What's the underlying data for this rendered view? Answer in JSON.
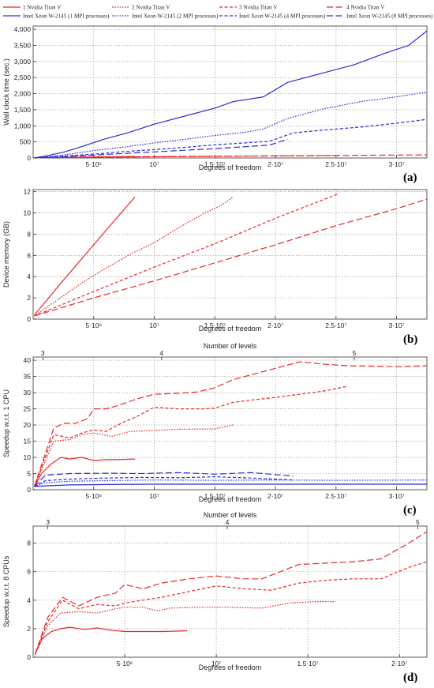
{
  "legend": [
    {
      "label": "1 Nvidia Titan V",
      "color": "#e8282b",
      "dash": "solid"
    },
    {
      "label": "2 Nvidia Titan V",
      "color": "#e8282b",
      "dash": "dotted"
    },
    {
      "label": "3 Nvidia Titan V",
      "color": "#e8282b",
      "dash": "dashed"
    },
    {
      "label": "4 Nvidia Titan V",
      "color": "#e8282b",
      "dash": "longdash"
    },
    {
      "label": "Intel Xeon W-2145 (1 MPI processes)",
      "color": "#2c2cd6",
      "dash": "solid"
    },
    {
      "label": "Intel Xeon W-2145 (2 MPI processes)",
      "color": "#2c2cd6",
      "dash": "dotted"
    },
    {
      "label": "Intel Xeon W-2145 (4 MPI processes)",
      "color": "#2c2cd6",
      "dash": "dashed"
    },
    {
      "label": "Intel Xeon W-2145 (8 MPI processes)",
      "color": "#2c2cd6",
      "dash": "longdash"
    }
  ],
  "chart_data": [
    {
      "panel": "(a)",
      "type": "line",
      "xlabel": "Degrees of freedom",
      "ylabel": "Wall clock time (sec.)",
      "xlim": [
        0,
        32500000
      ],
      "ylim": [
        0,
        4100
      ],
      "xticks": [
        {
          "v": 5000000,
          "label": "5·10⁶"
        },
        {
          "v": 10000000,
          "label": "10⁷"
        },
        {
          "v": 15000000,
          "label": "1.5·10⁷"
        },
        {
          "v": 20000000,
          "label": "2·10⁷"
        },
        {
          "v": 25000000,
          "label": "2.5·10⁷"
        },
        {
          "v": 30000000,
          "label": "3·10⁷"
        }
      ],
      "yticks": [
        {
          "v": 0,
          "label": "0"
        },
        {
          "v": 500,
          "label": "500"
        },
        {
          "v": 1000,
          "label": "1,000"
        },
        {
          "v": 1500,
          "label": "1,500"
        },
        {
          "v": 2000,
          "label": "2,000"
        },
        {
          "v": 2500,
          "label": "2,500"
        },
        {
          "v": 3000,
          "label": "3,000"
        },
        {
          "v": 3500,
          "label": "3,500"
        },
        {
          "v": 4000,
          "label": "4,000"
        }
      ],
      "grid": true,
      "series": [
        {
          "legend": 0,
          "x": [
            100000,
            1000000,
            2500000,
            4000000,
            5800000,
            7000000,
            8400000
          ],
          "y": [
            2,
            12,
            22,
            30,
            38,
            42,
            48
          ]
        },
        {
          "legend": 1,
          "x": [
            100000,
            2000000,
            4000000,
            6000000,
            9000000,
            12000000,
            15000000,
            16500000
          ],
          "y": [
            2,
            12,
            22,
            30,
            42,
            52,
            58,
            60
          ]
        },
        {
          "legend": 2,
          "x": [
            100000,
            3000000,
            6000000,
            10000000,
            14000000,
            18000000,
            22000000,
            25200000
          ],
          "y": [
            2,
            14,
            28,
            40,
            52,
            62,
            70,
            78
          ]
        },
        {
          "legend": 3,
          "x": [
            100000,
            4000000,
            8000000,
            13000000,
            18000000,
            23000000,
            28000000,
            32500000
          ],
          "y": [
            2,
            16,
            32,
            46,
            58,
            70,
            85,
            95
          ]
        },
        {
          "legend": 4,
          "x": [
            100000,
            1000000,
            2500000,
            4000000,
            5800000,
            7800000,
            10000000,
            12500000,
            15000000,
            16500000,
            19000000,
            21000000,
            24000000,
            26500000,
            29000000,
            31000000,
            32500000
          ],
          "y": [
            5,
            60,
            180,
            350,
            580,
            780,
            1050,
            1300,
            1550,
            1750,
            1900,
            2350,
            2650,
            2900,
            3250,
            3500,
            3950
          ]
        },
        {
          "legend": 5,
          "x": [
            100000,
            1500000,
            3000000,
            5000000,
            7500000,
            10000000,
            12500000,
            15000000,
            17500000,
            19000000,
            21000000,
            24000000,
            27000000,
            30000000,
            32500000
          ],
          "y": [
            3,
            50,
            120,
            230,
            340,
            470,
            580,
            700,
            800,
            900,
            1230,
            1530,
            1750,
            1900,
            2050
          ]
        },
        {
          "legend": 6,
          "x": [
            100000,
            2500000,
            5000000,
            7500000,
            10000000,
            12500000,
            15000000,
            17500000,
            19500000,
            21500000,
            24000000,
            27000000,
            30000000,
            32500000
          ],
          "y": [
            3,
            60,
            120,
            200,
            260,
            330,
            410,
            470,
            520,
            780,
            870,
            960,
            1080,
            1200
          ]
        },
        {
          "legend": 7,
          "x": [
            100000,
            2500000,
            5000000,
            7500000,
            10000000,
            12500000,
            15000000,
            17500000,
            19500000,
            21000000
          ],
          "y": [
            3,
            40,
            90,
            140,
            190,
            240,
            290,
            350,
            400,
            580
          ]
        }
      ]
    },
    {
      "panel": "(b)",
      "type": "line",
      "xlabel": "Degrees of freedom",
      "ylabel": "Device memory (GB)",
      "xlim": [
        0,
        32500000
      ],
      "ylim": [
        0,
        12.2
      ],
      "xticks": [
        {
          "v": 5000000,
          "label": "5·10⁶"
        },
        {
          "v": 10000000,
          "label": "10⁷"
        },
        {
          "v": 15000000,
          "label": "1.5·10⁷"
        },
        {
          "v": 20000000,
          "label": "2·10⁷"
        },
        {
          "v": 25000000,
          "label": "2.5·10⁷"
        },
        {
          "v": 30000000,
          "label": "3·10⁷"
        }
      ],
      "yticks": [
        {
          "v": 0,
          "label": "0"
        },
        {
          "v": 2,
          "label": "2"
        },
        {
          "v": 4,
          "label": "4"
        },
        {
          "v": 6,
          "label": "6"
        },
        {
          "v": 8,
          "label": "8"
        },
        {
          "v": 10,
          "label": "10"
        },
        {
          "v": 12,
          "label": "12"
        }
      ],
      "grid": true,
      "series": [
        {
          "legend": 0,
          "x": [
            100000,
            1000000,
            2000000,
            3500000,
            5000000,
            6500000,
            8400000
          ],
          "y": [
            0.4,
            1.6,
            3.0,
            5.0,
            7.0,
            9.0,
            11.5
          ]
        },
        {
          "legend": 1,
          "x": [
            100000,
            2000000,
            4000000,
            6000000,
            8000000,
            10000000,
            12000000,
            14000000,
            15500000,
            16500000
          ],
          "y": [
            0.3,
            1.8,
            3.4,
            4.8,
            6.1,
            7.2,
            8.6,
            9.9,
            10.7,
            11.5
          ]
        },
        {
          "legend": 2,
          "x": [
            100000,
            5000000,
            10000000,
            15000000,
            20000000,
            25200000
          ],
          "y": [
            0.3,
            2.6,
            4.9,
            7.1,
            9.5,
            11.8
          ]
        },
        {
          "legend": 3,
          "x": [
            100000,
            5000000,
            10000000,
            15000000,
            20000000,
            25000000,
            30000000,
            32500000
          ],
          "y": [
            0.3,
            2.0,
            3.6,
            5.3,
            7.0,
            8.8,
            10.4,
            11.3
          ]
        }
      ]
    },
    {
      "panel": "(c)",
      "type": "line",
      "xlabel": "Degrees of freedom",
      "ylabel": "Speedup w.r.t. 1 CPU",
      "x2label": "Number of levels",
      "xlim": [
        0,
        32500000
      ],
      "ylim": [
        0,
        41
      ],
      "xticks": [
        {
          "v": 5000000,
          "label": "5·10⁶"
        },
        {
          "v": 10000000,
          "label": "10⁷"
        },
        {
          "v": 15000000,
          "label": "1.5·10⁷"
        },
        {
          "v": 20000000,
          "label": "2·10⁷"
        },
        {
          "v": 25000000,
          "label": "2.5·10⁷"
        },
        {
          "v": 30000000,
          "label": "3·10⁷"
        }
      ],
      "yticks": [
        {
          "v": 0,
          "label": "0"
        },
        {
          "v": 5,
          "label": "5"
        },
        {
          "v": 10,
          "label": "10"
        },
        {
          "v": 15,
          "label": "15"
        },
        {
          "v": 20,
          "label": "20"
        },
        {
          "v": 25,
          "label": "25"
        },
        {
          "v": 30,
          "label": "30"
        },
        {
          "v": 35,
          "label": "35"
        },
        {
          "v": 40,
          "label": "40"
        }
      ],
      "x2ticks": [
        {
          "v": 800000,
          "label": "3"
        },
        {
          "v": 10600000,
          "label": "4"
        },
        {
          "v": 26500000,
          "label": "5"
        }
      ],
      "grid": true,
      "series": [
        {
          "legend": 0,
          "x": [
            100000,
            700000,
            1500000,
            2300000,
            3000000,
            4000000,
            5000000,
            6000000,
            7000000,
            8400000
          ],
          "y": [
            1,
            5,
            8,
            10,
            9.5,
            10,
            9,
            9.3,
            9.3,
            9.5
          ]
        },
        {
          "legend": 1,
          "x": [
            100000,
            800000,
            1700000,
            3000000,
            4000000,
            5000000,
            6500000,
            8000000,
            10000000,
            12000000,
            15000000,
            16500000
          ],
          "y": [
            1,
            7,
            15,
            15.5,
            17,
            17.5,
            16.5,
            18,
            18.3,
            18.7,
            18.8,
            20
          ]
        },
        {
          "legend": 2,
          "x": [
            100000,
            800000,
            1700000,
            3000000,
            4000000,
            5000000,
            6000000,
            7500000,
            8500000,
            10000000,
            12000000,
            14000000,
            15000000,
            16500000,
            18000000,
            20000000,
            22000000,
            24000000,
            26000000
          ],
          "y": [
            1,
            8,
            17,
            16,
            17.5,
            18.5,
            18,
            21,
            22.5,
            25.5,
            25,
            25,
            25.2,
            27,
            27.7,
            28.5,
            29.5,
            30.5,
            32
          ]
        },
        {
          "legend": 3,
          "x": [
            100000,
            900000,
            1700000,
            2500000,
            3500000,
            4500000,
            5000000,
            6000000,
            7000000,
            8500000,
            10000000,
            12000000,
            13500000,
            15000000,
            16500000,
            18000000,
            20000000,
            22000000,
            24000000,
            26000000,
            28000000,
            30000000,
            32500000
          ],
          "y": [
            1,
            10,
            19,
            20.5,
            20.5,
            22,
            25,
            25,
            26,
            28,
            29.5,
            29.8,
            30.2,
            31.5,
            34,
            35.5,
            37.5,
            39.5,
            38.8,
            38.3,
            38.2,
            38,
            38.3
          ]
        },
        {
          "legend": 4,
          "x": [
            100000,
            1000000,
            3000000,
            6000000,
            10000000,
            15000000,
            20000000,
            25000000,
            32500000
          ],
          "y": [
            1,
            1.2,
            1.5,
            1.6,
            1.7,
            1.7,
            1.7,
            1.7,
            1.7
          ]
        },
        {
          "legend": 5,
          "x": [
            100000,
            1000000,
            3000000,
            6000000,
            10000000,
            15000000,
            20000000,
            25000000,
            32500000
          ],
          "y": [
            1,
            2.2,
            2.6,
            2.8,
            3.0,
            2.9,
            3.0,
            2.9,
            3.0
          ]
        },
        {
          "legend": 6,
          "x": [
            100000,
            1000000,
            3000000,
            6000000,
            9000000,
            12000000,
            15000000,
            18000000,
            21500000
          ],
          "y": [
            1,
            2.8,
            3.3,
            3.6,
            3.8,
            3.7,
            4.0,
            3.6,
            3.0
          ]
        },
        {
          "legend": 7,
          "x": [
            100000,
            1000000,
            3000000,
            6000000,
            9000000,
            12000000,
            15000000,
            18000000,
            21500000
          ],
          "y": [
            1,
            4.5,
            5.0,
            5.1,
            5.0,
            5.3,
            4.8,
            5.3,
            4.2
          ]
        }
      ]
    },
    {
      "panel": "(d)",
      "type": "line",
      "xlabel": "Degrees of freedom",
      "ylabel": "Speedup w.r.t. 8 CPUs",
      "x2label": "Number of levels",
      "xlim": [
        0,
        21500000
      ],
      "ylim": [
        0,
        9.2
      ],
      "xticks": [
        {
          "v": 5000000,
          "label": "5·10⁶"
        },
        {
          "v": 10000000,
          "label": "10⁷"
        },
        {
          "v": 15000000,
          "label": "1.5·10⁷"
        },
        {
          "v": 20000000,
          "label": "2·10⁷"
        }
      ],
      "yticks": [
        {
          "v": 0,
          "label": "0"
        },
        {
          "v": 2,
          "label": "2"
        },
        {
          "v": 4,
          "label": "4"
        },
        {
          "v": 6,
          "label": "6"
        },
        {
          "v": 8,
          "label": "8"
        }
      ],
      "x2ticks": [
        {
          "v": 800000,
          "label": "3"
        },
        {
          "v": 10600000,
          "label": "4"
        },
        {
          "v": 21000000,
          "label": "5"
        }
      ],
      "grid": true,
      "series": [
        {
          "legend": 0,
          "x": [
            100000,
            500000,
            1000000,
            1500000,
            2000000,
            2800000,
            3500000,
            4200000,
            5000000,
            6000000,
            7000000,
            8400000
          ],
          "y": [
            0.2,
            1.3,
            1.8,
            2.0,
            2.1,
            1.95,
            2.05,
            1.9,
            1.8,
            1.8,
            1.8,
            1.85
          ]
        },
        {
          "legend": 1,
          "x": [
            100000,
            800000,
            1500000,
            2500000,
            3500000,
            4500000,
            5000000,
            6000000,
            6800000,
            7500000,
            9000000,
            10500000,
            12500000,
            14000000,
            15500000,
            16500000
          ],
          "y": [
            0.2,
            2.2,
            3.1,
            3.2,
            3.1,
            3.4,
            3.5,
            3.5,
            3.25,
            3.45,
            3.5,
            3.5,
            3.45,
            3.8,
            3.9,
            3.9
          ]
        },
        {
          "legend": 2,
          "x": [
            100000,
            800000,
            1600000,
            2500000,
            3500000,
            4500000,
            5000000,
            7000000,
            8500000,
            10000000,
            11500000,
            13000000,
            14500000,
            16000000,
            17500000,
            19000000,
            20500000,
            21500000
          ],
          "y": [
            0.2,
            2.5,
            4.0,
            3.4,
            3.7,
            3.6,
            3.8,
            4.2,
            4.6,
            5.0,
            4.8,
            4.7,
            5.2,
            5.4,
            5.5,
            5.5,
            6.3,
            6.7
          ]
        },
        {
          "legend": 3,
          "x": [
            100000,
            800000,
            1600000,
            2500000,
            3500000,
            4500000,
            5000000,
            6000000,
            7000000,
            8500000,
            10000000,
            11500000,
            12500000,
            13500000,
            14500000,
            16000000,
            17500000,
            19000000,
            20500000,
            21500000
          ],
          "y": [
            0.2,
            2.8,
            4.2,
            3.6,
            4.2,
            4.5,
            5.1,
            4.8,
            5.2,
            5.5,
            5.7,
            5.5,
            5.5,
            6.0,
            6.5,
            6.6,
            6.7,
            6.9,
            8.0,
            8.8
          ]
        }
      ]
    }
  ],
  "panel_labels": [
    "(a)",
    "(b)",
    "(c)",
    "(d)"
  ]
}
